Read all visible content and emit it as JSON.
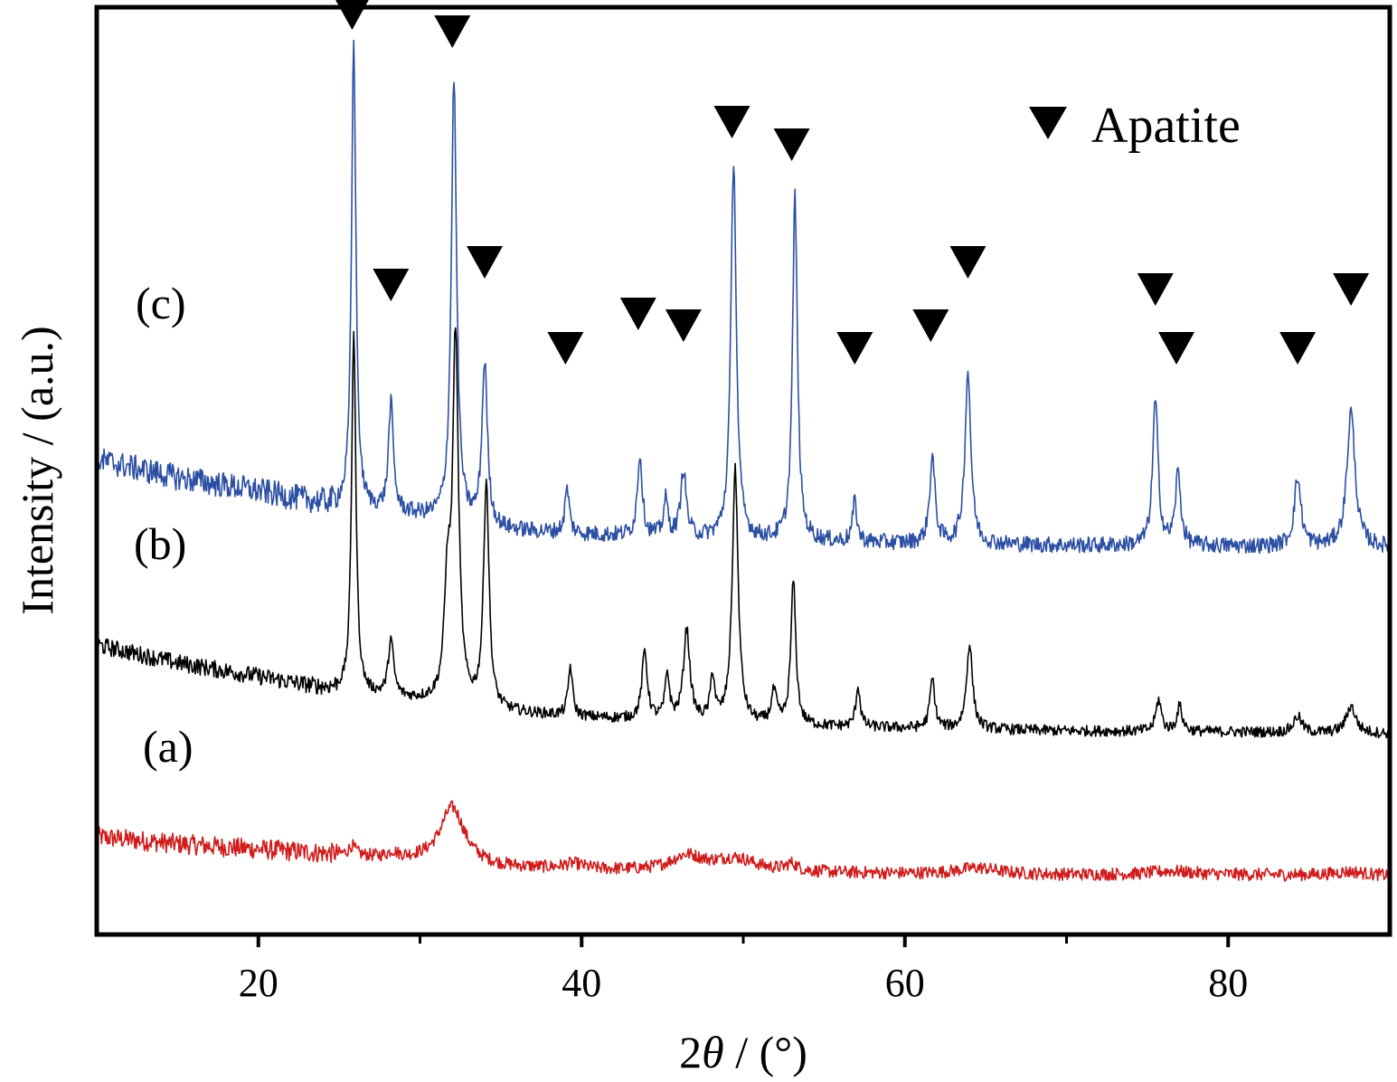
{
  "chart_data": {
    "type": "line",
    "title": "",
    "xlabel_prefix": "2",
    "xlabel_theta": "θ",
    "xlabel_suffix": " / (°)",
    "ylabel": "Intensity / (a.u.)",
    "xlim": [
      10,
      90
    ],
    "xticks": [
      20,
      40,
      60,
      80
    ],
    "minor_xticks": [
      30,
      50,
      70
    ],
    "legend": {
      "label": "Apatite",
      "placement": "top-right",
      "marker": "down-triangle"
    },
    "series": [
      {
        "name": "(a)",
        "color": "#d01c1c",
        "baseline": [
          [
            10,
            108
          ],
          [
            15,
            100
          ],
          [
            20,
            94
          ],
          [
            25,
            88
          ],
          [
            28,
            84
          ],
          [
            30,
            82
          ],
          [
            35,
            74
          ],
          [
            40,
            71
          ],
          [
            50,
            69
          ],
          [
            60,
            67
          ],
          [
            70,
            66
          ],
          [
            80,
            66
          ],
          [
            90,
            65
          ]
        ],
        "peaks": [
          [
            25.8,
            10,
            0.25
          ],
          [
            28.3,
            6,
            0.3
          ],
          [
            32.0,
            62,
            0.9
          ],
          [
            39.5,
            6,
            0.8
          ],
          [
            46.5,
            16,
            1.2
          ],
          [
            49.5,
            14,
            1.6
          ],
          [
            53.0,
            8,
            0.4
          ],
          [
            64.5,
            7,
            1.5
          ],
          [
            76.5,
            4,
            1.5
          ],
          [
            87.5,
            4,
            1.2
          ]
        ],
        "noise": 7
      },
      {
        "name": "(b)",
        "color": "#000000",
        "baseline": [
          [
            10,
            320
          ],
          [
            15,
            300
          ],
          [
            20,
            285
          ],
          [
            25,
            268
          ],
          [
            28,
            262
          ],
          [
            30,
            258
          ],
          [
            35,
            246
          ],
          [
            40,
            240
          ],
          [
            50,
            232
          ],
          [
            60,
            228
          ],
          [
            70,
            225
          ],
          [
            80,
            224
          ],
          [
            90,
            222
          ]
        ],
        "peaks": [
          [
            25.9,
            400,
            0.16
          ],
          [
            28.2,
            62,
            0.2
          ],
          [
            31.7,
            120,
            0.22
          ],
          [
            32.2,
            400,
            0.22
          ],
          [
            34.1,
            250,
            0.2
          ],
          [
            39.3,
            55,
            0.16
          ],
          [
            43.9,
            75,
            0.2
          ],
          [
            45.3,
            50,
            0.16
          ],
          [
            46.5,
            100,
            0.24
          ],
          [
            48.1,
            50,
            0.16
          ],
          [
            49.5,
            280,
            0.22
          ],
          [
            51.9,
            35,
            0.2
          ],
          [
            53.1,
            160,
            0.18
          ],
          [
            57.1,
            45,
            0.16
          ],
          [
            61.7,
            55,
            0.18
          ],
          [
            64.0,
            95,
            0.22
          ],
          [
            75.7,
            35,
            0.2
          ],
          [
            77.0,
            28,
            0.2
          ],
          [
            84.3,
            18,
            0.3
          ],
          [
            87.6,
            30,
            0.35
          ]
        ],
        "noise": 6
      },
      {
        "name": "(c)",
        "color": "#2c4fa3",
        "baseline": [
          [
            10,
            525
          ],
          [
            15,
            505
          ],
          [
            20,
            490
          ],
          [
            25,
            472
          ],
          [
            28,
            466
          ],
          [
            30,
            462
          ],
          [
            35,
            447
          ],
          [
            40,
            442
          ],
          [
            50,
            436
          ],
          [
            60,
            432
          ],
          [
            70,
            430
          ],
          [
            80,
            429
          ],
          [
            90,
            428
          ]
        ],
        "peaks": [
          [
            25.9,
            520,
            0.16
          ],
          [
            28.2,
            120,
            0.18
          ],
          [
            32.1,
            490,
            0.2
          ],
          [
            34.0,
            180,
            0.2
          ],
          [
            39.1,
            50,
            0.16
          ],
          [
            43.6,
            90,
            0.18
          ],
          [
            45.2,
            40,
            0.16
          ],
          [
            46.3,
            75,
            0.2
          ],
          [
            49.4,
            420,
            0.2
          ],
          [
            53.2,
            380,
            0.18
          ],
          [
            56.9,
            45,
            0.16
          ],
          [
            61.7,
            95,
            0.2
          ],
          [
            63.9,
            190,
            0.22
          ],
          [
            75.5,
            160,
            0.2
          ],
          [
            76.9,
            80,
            0.2
          ],
          [
            84.3,
            75,
            0.25
          ],
          [
            87.6,
            150,
            0.3
          ]
        ],
        "noise": 9
      }
    ],
    "apatite_markers": [
      {
        "x": 25.8,
        "level": 1000
      },
      {
        "x": 28.2,
        "level": 700
      },
      {
        "x": 32.0,
        "level": 980
      },
      {
        "x": 34.0,
        "level": 725
      },
      {
        "x": 39.0,
        "level": 630
      },
      {
        "x": 43.5,
        "level": 668
      },
      {
        "x": 46.3,
        "level": 655
      },
      {
        "x": 49.3,
        "level": 880
      },
      {
        "x": 53.0,
        "level": 855
      },
      {
        "x": 56.9,
        "level": 630
      },
      {
        "x": 61.6,
        "level": 655
      },
      {
        "x": 63.9,
        "level": 725
      },
      {
        "x": 75.5,
        "level": 695
      },
      {
        "x": 76.8,
        "level": 630
      },
      {
        "x": 84.3,
        "level": 630
      },
      {
        "x": 87.6,
        "level": 695
      }
    ]
  }
}
